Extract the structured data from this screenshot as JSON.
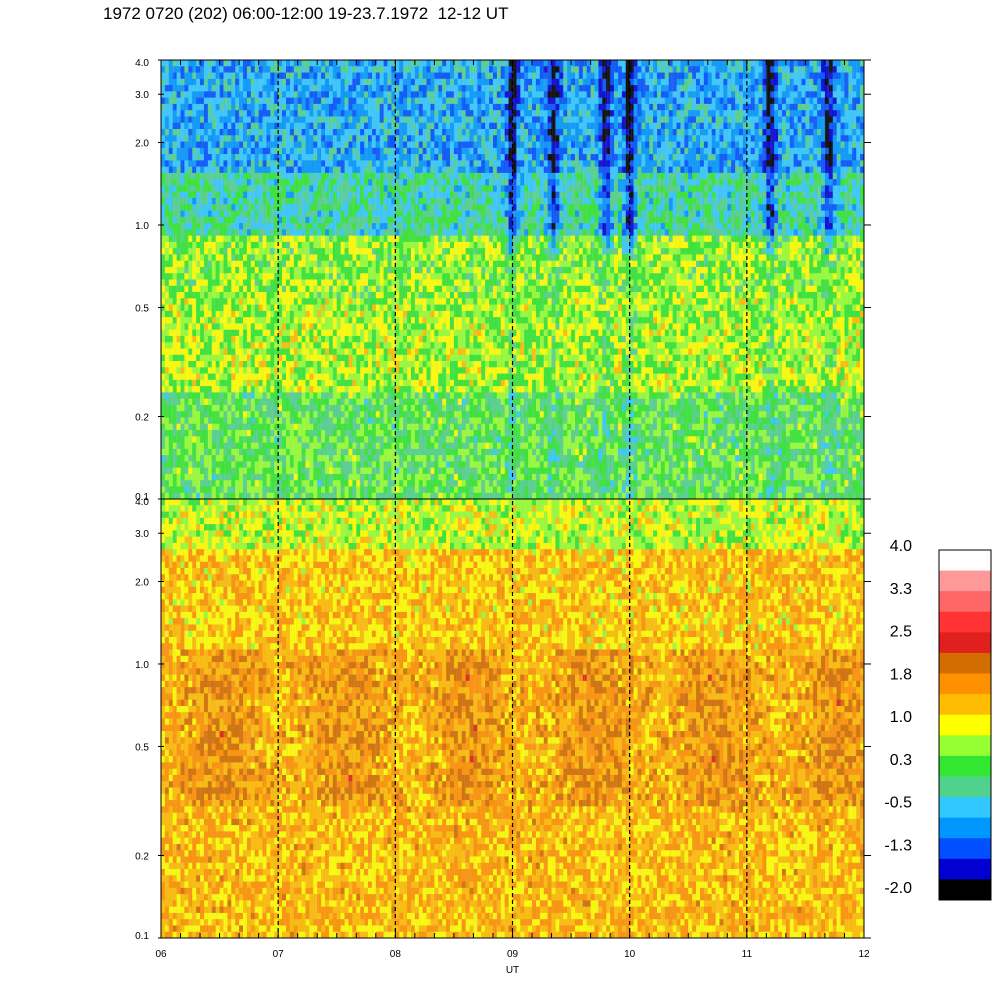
{
  "title": "1972 0720 (202) 06:00-12:00 19-23.7.1972  12-12 UT",
  "chart_data": {
    "type": "heatmap",
    "x_label": "UT",
    "x_ticks": [
      "06",
      "07",
      "08",
      "09",
      "10",
      "11",
      "12"
    ],
    "x_range": [
      6,
      12
    ],
    "panels": [
      {
        "name": "upper",
        "y_scale": "log",
        "y_range": [
          0.1,
          4.0
        ],
        "y_ticks": [
          0.1,
          0.2,
          0.5,
          1.0,
          2.0,
          3.0,
          4.0
        ],
        "y_tick_labels": [
          "0.1",
          "0.2",
          "0.5",
          "1.0",
          "2.0",
          "3.0",
          "4.0"
        ],
        "value_range": [
          -2.0,
          1.5
        ]
      },
      {
        "name": "lower",
        "y_scale": "log",
        "y_range": [
          0.1,
          4.0
        ],
        "y_ticks": [
          0.1,
          0.2,
          0.5,
          1.0,
          2.0,
          3.0,
          4.0
        ],
        "y_tick_labels": [
          "0.1",
          "0.2",
          "0.5",
          "1.0",
          "2.0",
          "3.0",
          "4.0"
        ],
        "value_range": [
          0.3,
          2.5
        ]
      }
    ],
    "vertical_dashed_lines": [
      7,
      8,
      9,
      10,
      11
    ],
    "colorbar": {
      "min": -2.0,
      "max": 4.0,
      "labels": [
        "4.0",
        "3.3",
        "2.5",
        "1.8",
        "1.0",
        "0.3",
        "-0.5",
        "-1.3",
        "-2.0"
      ],
      "colors_top_to_bottom": [
        "#ffffff",
        "#ff9898",
        "#ff6666",
        "#ff3333",
        "#e01f1f",
        "#d36d00",
        "#ff9100",
        "#ffbc00",
        "#ffff00",
        "#96ff32",
        "#32e632",
        "#50d28c",
        "#32c8ff",
        "#0096ff",
        "#0050ff",
        "#0000d2",
        "#000000"
      ]
    }
  }
}
